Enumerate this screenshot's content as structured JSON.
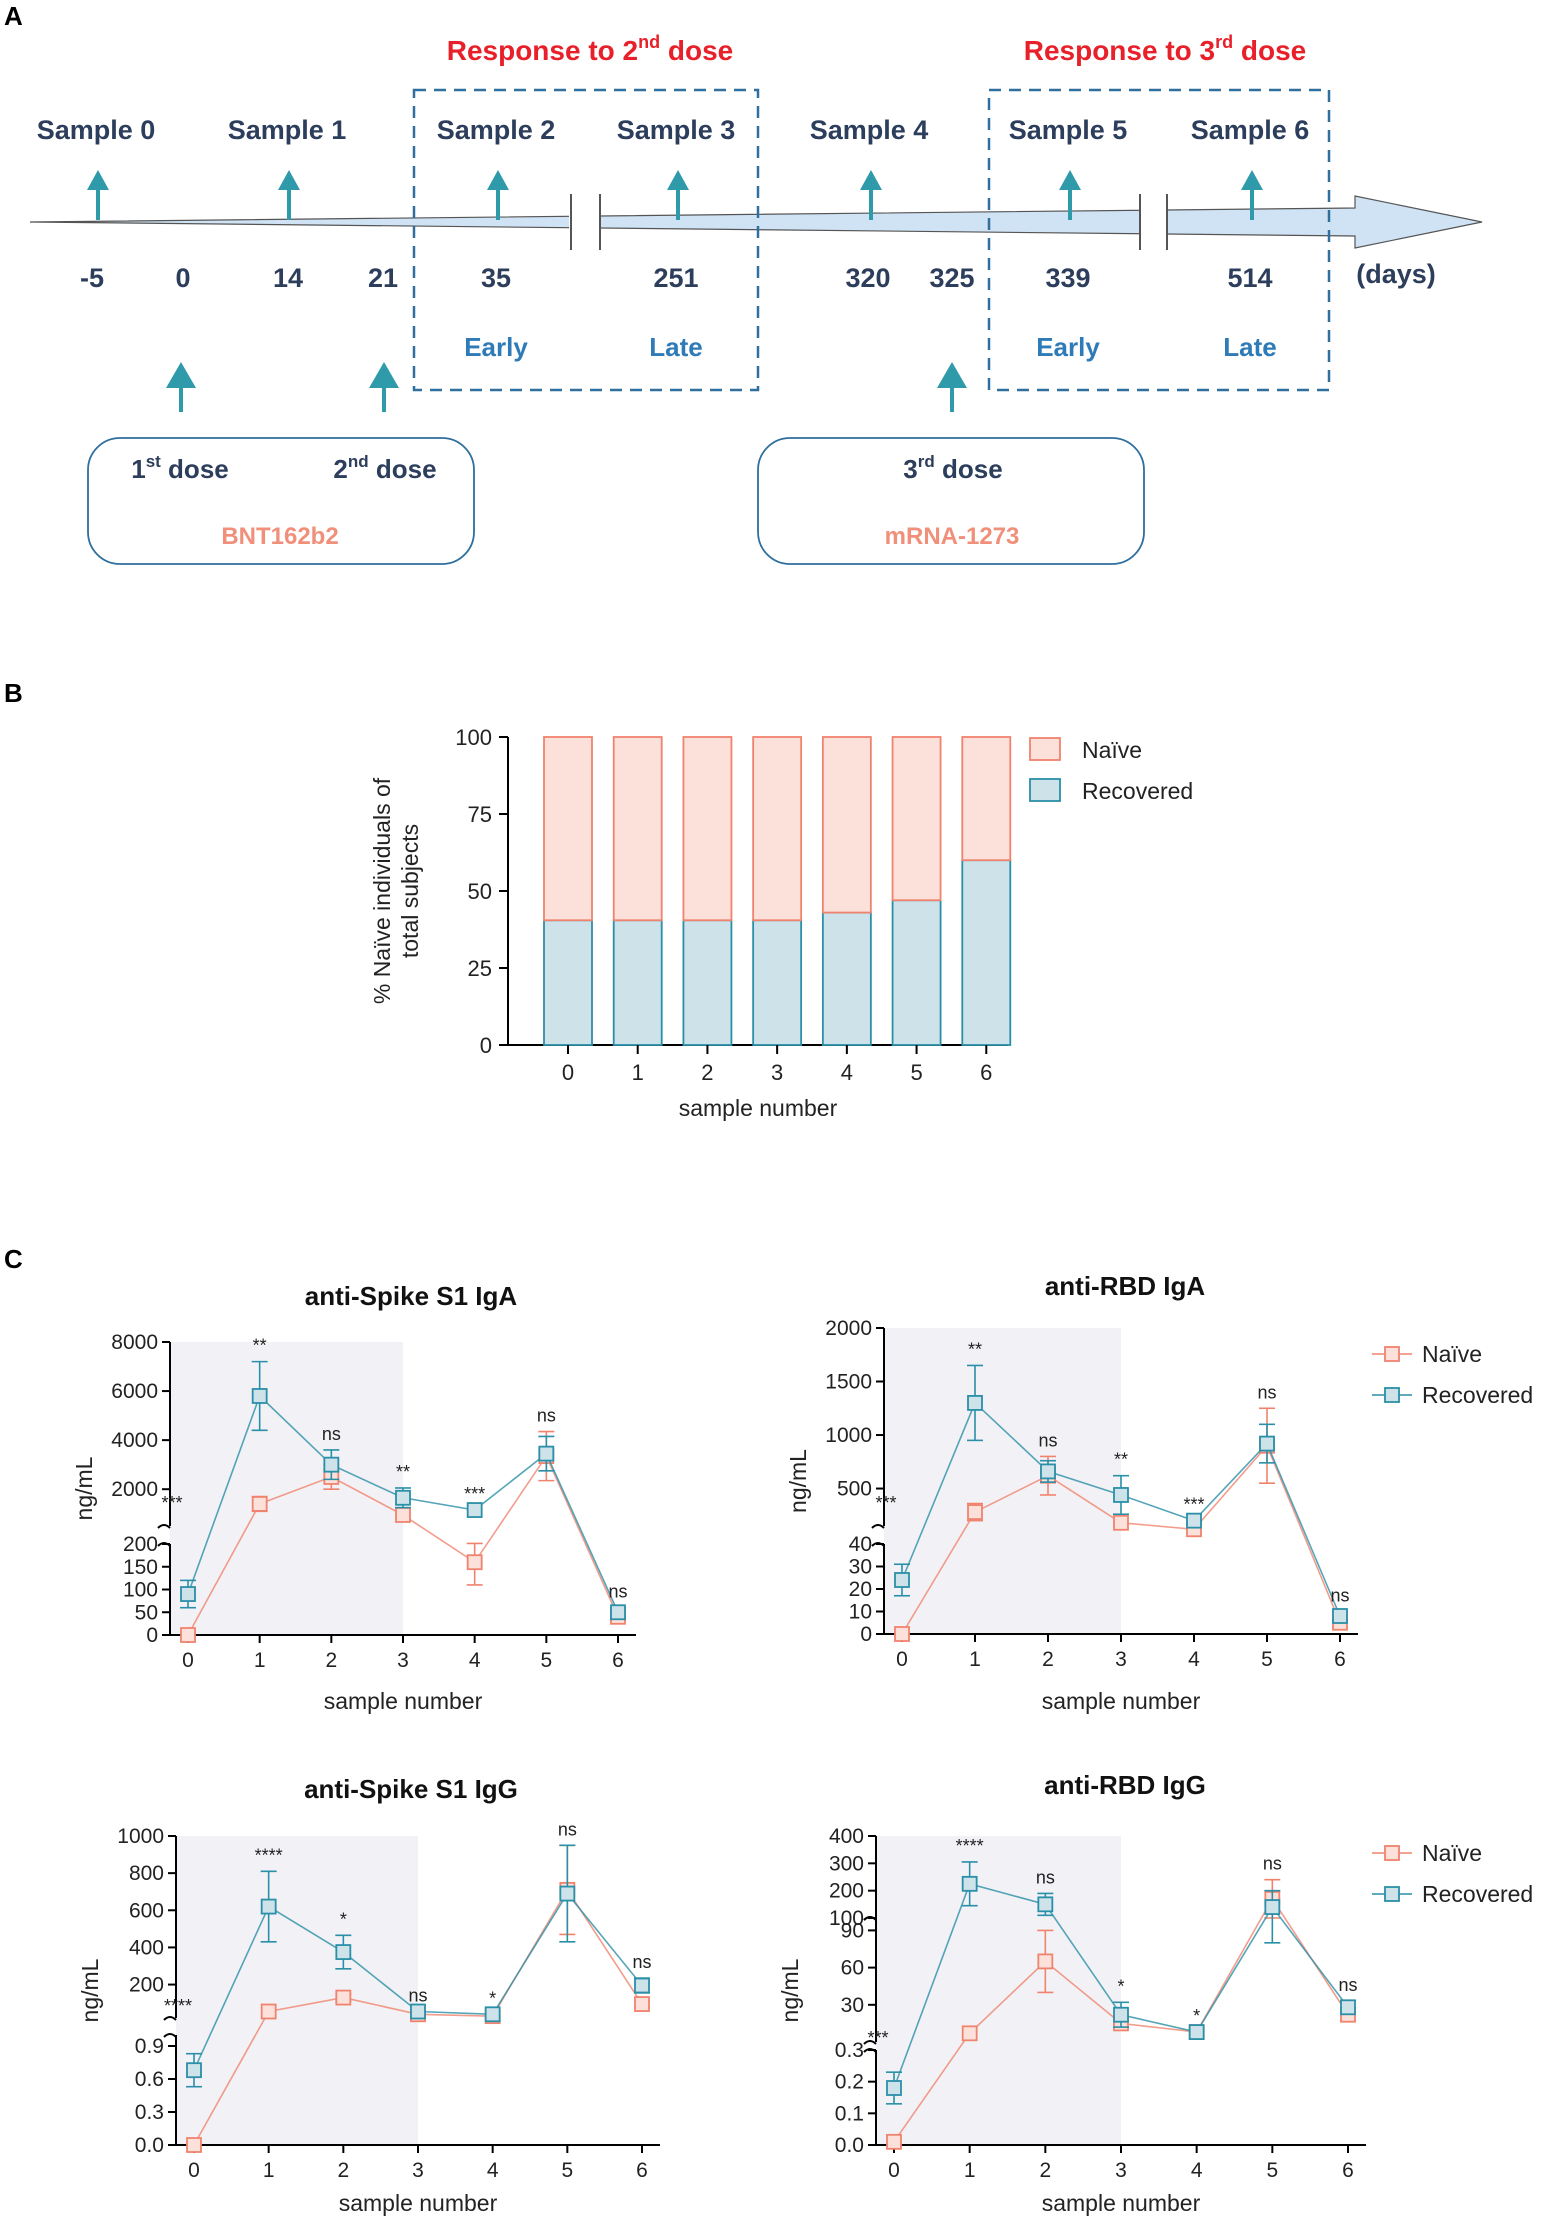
{
  "colors": {
    "naive": "#F0836E",
    "recovered": "#2A8FA8",
    "naive_fill": "#FCE0DA",
    "recovered_fill": "#CDE2E9",
    "timeline_fill": "#CFE3F5",
    "arrow": "#2E9AAA",
    "dash_box": "#2E6F9E",
    "dark_text": "#2C3E5C",
    "red_text": "#E8202A",
    "blue_text": "#2E7BB8",
    "salmon_text": "#F0907A",
    "shade": "#F2F2F6"
  },
  "panel_a": {
    "letter": "A",
    "response2": {
      "prefix": "Response to 2",
      "sup": "nd",
      "suffix": " dose"
    },
    "response3": {
      "prefix": "Response to 3",
      "sup": "rd",
      "suffix": " dose"
    },
    "samples": [
      "Sample 0",
      "Sample 1",
      "Sample 2",
      "Sample 3",
      "Sample 4",
      "Sample 5",
      "Sample 6"
    ],
    "days": [
      "-5",
      "0",
      "14",
      "21",
      "35",
      "251",
      "320",
      "325",
      "339",
      "514"
    ],
    "days_unit": "(days)",
    "phases": [
      "Early",
      "Late",
      "Early",
      "Late"
    ],
    "dose1": {
      "num": "1",
      "sup": "st",
      "word": " dose"
    },
    "dose2": {
      "num": "2",
      "sup": "nd",
      "word": " dose"
    },
    "dose3": {
      "num": "3",
      "sup": "rd",
      "word": " dose"
    },
    "vaccine1": "BNT162b2",
    "vaccine2": "mRNA-1273"
  },
  "panel_b": {
    "letter": "B"
  },
  "panel_c": {
    "letter": "C"
  },
  "chart_data": [
    {
      "id": "panel_b",
      "type": "bar",
      "stacked": true,
      "xlabel": "sample number",
      "ylabel": "% Naïve individuals of total subjects",
      "ylabel_lines": [
        "% Naïve individuals of",
        "total subjects"
      ],
      "categories": [
        "0",
        "1",
        "2",
        "3",
        "4",
        "5",
        "6"
      ],
      "yticks": [
        0,
        25,
        50,
        75,
        100
      ],
      "ylim": [
        0,
        100
      ],
      "series": [
        {
          "name": "Recovered",
          "values": [
            40.5,
            40.5,
            40.5,
            40.5,
            43,
            47,
            60
          ]
        },
        {
          "name": "Naïve",
          "values": [
            59.5,
            59.5,
            59.5,
            59.5,
            57,
            53,
            40
          ]
        }
      ],
      "legend": [
        "Naïve",
        "Recovered"
      ],
      "legend_position": "right"
    },
    {
      "id": "spike_iga",
      "type": "line",
      "title": "anti-Spike S1 IgA",
      "xlabel": "sample number",
      "ylabel": "ng/mL",
      "x": [
        0,
        1,
        2,
        3,
        4,
        5,
        6
      ],
      "shaded_x_range": [
        0,
        3
      ],
      "upper_ticks": [
        2000,
        4000,
        6000,
        8000
      ],
      "lower_ticks": [
        0,
        50,
        100,
        150,
        200
      ],
      "series": [
        {
          "name": "Naïve",
          "values": [
            0,
            1400,
            2500,
            950,
            160,
            3350,
            40
          ],
          "err": [
            0,
            300,
            500,
            0,
            50,
            1000,
            8
          ]
        },
        {
          "name": "Recovered",
          "values": [
            90,
            5800,
            3000,
            1650,
            1150,
            3450,
            50
          ],
          "err": [
            30,
            1400,
            600,
            400,
            0,
            700,
            10
          ]
        }
      ],
      "annotations": [
        "***",
        "**",
        "ns",
        "**",
        "***",
        "ns",
        "ns"
      ]
    },
    {
      "id": "rbd_iga",
      "type": "line",
      "title": "anti-RBD IgA",
      "xlabel": "sample number",
      "ylabel": "ng/mL",
      "x": [
        0,
        1,
        2,
        3,
        4,
        5,
        6
      ],
      "shaded_x_range": [
        0,
        3
      ],
      "upper_ticks": [
        500,
        1000,
        1500,
        2000
      ],
      "lower_ticks": [
        0,
        10,
        20,
        30,
        40
      ],
      "series": [
        {
          "name": "Naïve",
          "values": [
            0,
            280,
            620,
            180,
            130,
            900,
            5
          ],
          "err": [
            0,
            80,
            180,
            0,
            0,
            350,
            2
          ]
        },
        {
          "name": "Recovered",
          "values": [
            24,
            1300,
            660,
            440,
            200,
            920,
            8
          ],
          "err": [
            7,
            350,
            100,
            180,
            0,
            180,
            2
          ]
        }
      ],
      "annotations": [
        "***",
        "**",
        "ns",
        "**",
        "***",
        "ns",
        "ns"
      ]
    },
    {
      "id": "spike_igg",
      "type": "line",
      "title": "anti-Spike S1 IgG",
      "xlabel": "sample number",
      "ylabel": "ng/mL",
      "x": [
        0,
        1,
        2,
        3,
        4,
        5,
        6
      ],
      "shaded_x_range": [
        0,
        3
      ],
      "upper_ticks": [
        200,
        400,
        600,
        800,
        1000
      ],
      "lower_ticks": [
        0.0,
        0.3,
        0.6,
        0.9
      ],
      "series": [
        {
          "name": "Naïve",
          "values": [
            0.0,
            55,
            130,
            40,
            30,
            710,
            95
          ],
          "err": [
            0,
            0,
            20,
            0,
            0,
            240,
            20
          ]
        },
        {
          "name": "Recovered",
          "values": [
            0.68,
            620,
            375,
            55,
            40,
            690,
            195
          ],
          "err": [
            0.15,
            190,
            90,
            0,
            0,
            260,
            40
          ]
        }
      ],
      "annotations": [
        "****",
        "****",
        "*",
        "ns",
        "*",
        "ns",
        "ns"
      ]
    },
    {
      "id": "rbd_igg",
      "type": "line",
      "title": "anti-RBD IgG",
      "xlabel": "sample number",
      "ylabel": "ng/mL",
      "x": [
        0,
        1,
        2,
        3,
        4,
        5,
        6
      ],
      "shaded_x_range": [
        0,
        3
      ],
      "upper_ticks": [
        100,
        200,
        300,
        400
      ],
      "mid_ticks": [
        30,
        60,
        90
      ],
      "lower_ticks": [
        0.0,
        0.1,
        0.2,
        0.3
      ],
      "series": [
        {
          "name": "Naïve",
          "values": [
            0.01,
            7,
            65,
            15,
            8,
            170,
            22
          ],
          "err": [
            0,
            0,
            25,
            0,
            0,
            70,
            5
          ]
        },
        {
          "name": "Recovered",
          "values": [
            0.18,
            225,
            150,
            22,
            8,
            140,
            28
          ],
          "err": [
            0.05,
            80,
            40,
            10,
            0,
            60,
            5
          ]
        }
      ],
      "annotations": [
        "***",
        "****",
        "ns",
        "*",
        "*",
        "ns",
        "ns"
      ]
    }
  ],
  "legend_c": [
    "Naïve",
    "Recovered"
  ]
}
